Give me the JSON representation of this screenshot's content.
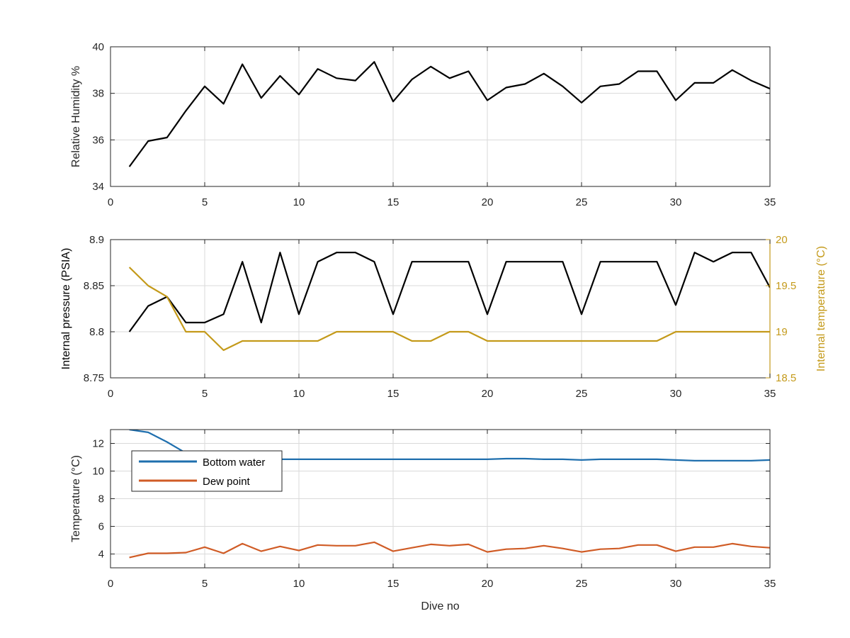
{
  "colors": {
    "black_series": "#000000",
    "internal_temperature": "#C49A1A",
    "bottom_water": "#1F6FAE",
    "dew_point": "#D05C26",
    "grid": "#DADADA",
    "axis": "#262626",
    "tick_text": "#262626"
  },
  "chart_data": [
    {
      "type": "line",
      "grid": true,
      "xlabel": "",
      "ylabel": "Relative Humidity %",
      "xlim": [
        0,
        35
      ],
      "ylim": [
        34,
        40
      ],
      "xticks": [
        0,
        5,
        10,
        15,
        20,
        25,
        30,
        35
      ],
      "yticks": [
        34,
        36,
        38,
        40
      ],
      "x": [
        1,
        2,
        3,
        4,
        5,
        6,
        7,
        8,
        9,
        10,
        11,
        12,
        13,
        14,
        15,
        16,
        17,
        18,
        19,
        20,
        21,
        22,
        23,
        24,
        25,
        26,
        27,
        28,
        29,
        30,
        31,
        32,
        33,
        34,
        35
      ],
      "series": [
        {
          "color": "#000000",
          "values": [
            34.85,
            35.95,
            36.1,
            37.25,
            38.3,
            37.55,
            39.25,
            37.8,
            38.75,
            37.95,
            39.05,
            38.65,
            38.55,
            39.35,
            37.65,
            38.6,
            39.15,
            38.65,
            38.95,
            37.7,
            38.25,
            38.4,
            38.85,
            38.3,
            37.6,
            38.3,
            38.4,
            38.95,
            38.95,
            37.7,
            38.45,
            38.45,
            39.0,
            38.55,
            38.2
          ]
        }
      ]
    },
    {
      "type": "line",
      "grid": true,
      "xlabel": "",
      "ylabel": "Internal pressure (PSIA)",
      "ylabel_right": "Internal temperature (°C)",
      "xlim": [
        0,
        35
      ],
      "ylim": [
        8.75,
        8.9
      ],
      "ylim_right": [
        18.5,
        20
      ],
      "xticks": [
        0,
        5,
        10,
        15,
        20,
        25,
        30,
        35
      ],
      "yticks": [
        "8.75",
        "8.8",
        "8.85",
        "8.9"
      ],
      "yticks_right": [
        "18.5",
        "19",
        "19.5",
        "20"
      ],
      "x": [
        1,
        2,
        3,
        4,
        5,
        6,
        7,
        8,
        9,
        10,
        11,
        12,
        13,
        14,
        15,
        16,
        17,
        18,
        19,
        20,
        21,
        22,
        23,
        24,
        25,
        26,
        27,
        28,
        29,
        30,
        31,
        32,
        33,
        34,
        35
      ],
      "series": [
        {
          "axis": "left",
          "color": "#000000",
          "values": [
            8.8,
            8.828,
            8.838,
            8.81,
            8.81,
            8.819,
            8.876,
            8.81,
            8.886,
            8.819,
            8.876,
            8.886,
            8.886,
            8.876,
            8.819,
            8.876,
            8.876,
            8.876,
            8.876,
            8.819,
            8.876,
            8.876,
            8.876,
            8.876,
            8.819,
            8.876,
            8.876,
            8.876,
            8.876,
            8.829,
            8.886,
            8.876,
            8.886,
            8.886,
            8.848
          ]
        },
        {
          "axis": "right",
          "color": "#C49A1A",
          "values": [
            19.7,
            19.5,
            19.38,
            19.0,
            19.0,
            18.8,
            18.9,
            18.9,
            18.9,
            18.9,
            18.9,
            19.0,
            19.0,
            19.0,
            19.0,
            18.9,
            18.9,
            19.0,
            19.0,
            18.9,
            18.9,
            18.9,
            18.9,
            18.9,
            18.9,
            18.9,
            18.9,
            18.9,
            18.9,
            19.0,
            19.0,
            19.0,
            19.0,
            19.0,
            19.0
          ]
        }
      ]
    },
    {
      "type": "line",
      "grid": true,
      "xlabel": "Dive no",
      "ylabel": "Temperature (°C)",
      "xlim": [
        0,
        35
      ],
      "ylim": [
        3,
        13
      ],
      "xticks": [
        0,
        5,
        10,
        15,
        20,
        25,
        30,
        35
      ],
      "yticks": [
        4,
        6,
        8,
        10,
        12
      ],
      "legend": "top-left",
      "x": [
        1,
        2,
        3,
        4,
        5,
        6,
        7,
        8,
        9,
        10,
        11,
        12,
        13,
        14,
        15,
        16,
        17,
        18,
        19,
        20,
        21,
        22,
        23,
        24,
        25,
        26,
        27,
        28,
        29,
        30,
        31,
        32,
        33,
        34,
        35
      ],
      "series": [
        {
          "name": "Bottom water",
          "color": "#1F6FAE",
          "values": [
            13.0,
            12.8,
            12.1,
            11.3,
            11.0,
            10.9,
            10.85,
            10.85,
            10.85,
            10.85,
            10.85,
            10.85,
            10.85,
            10.85,
            10.85,
            10.85,
            10.85,
            10.85,
            10.85,
            10.85,
            10.9,
            10.9,
            10.85,
            10.85,
            10.8,
            10.85,
            10.85,
            10.85,
            10.85,
            10.8,
            10.75,
            10.75,
            10.75,
            10.75,
            10.8
          ]
        },
        {
          "name": "Dew point",
          "color": "#D05C26",
          "values": [
            3.75,
            4.05,
            4.05,
            4.1,
            4.5,
            4.05,
            4.75,
            4.2,
            4.55,
            4.25,
            4.65,
            4.6,
            4.6,
            4.85,
            4.2,
            4.45,
            4.7,
            4.6,
            4.7,
            4.15,
            4.35,
            4.4,
            4.6,
            4.4,
            4.15,
            4.35,
            4.4,
            4.65,
            4.65,
            4.2,
            4.5,
            4.5,
            4.75,
            4.55,
            4.45
          ]
        }
      ]
    }
  ]
}
